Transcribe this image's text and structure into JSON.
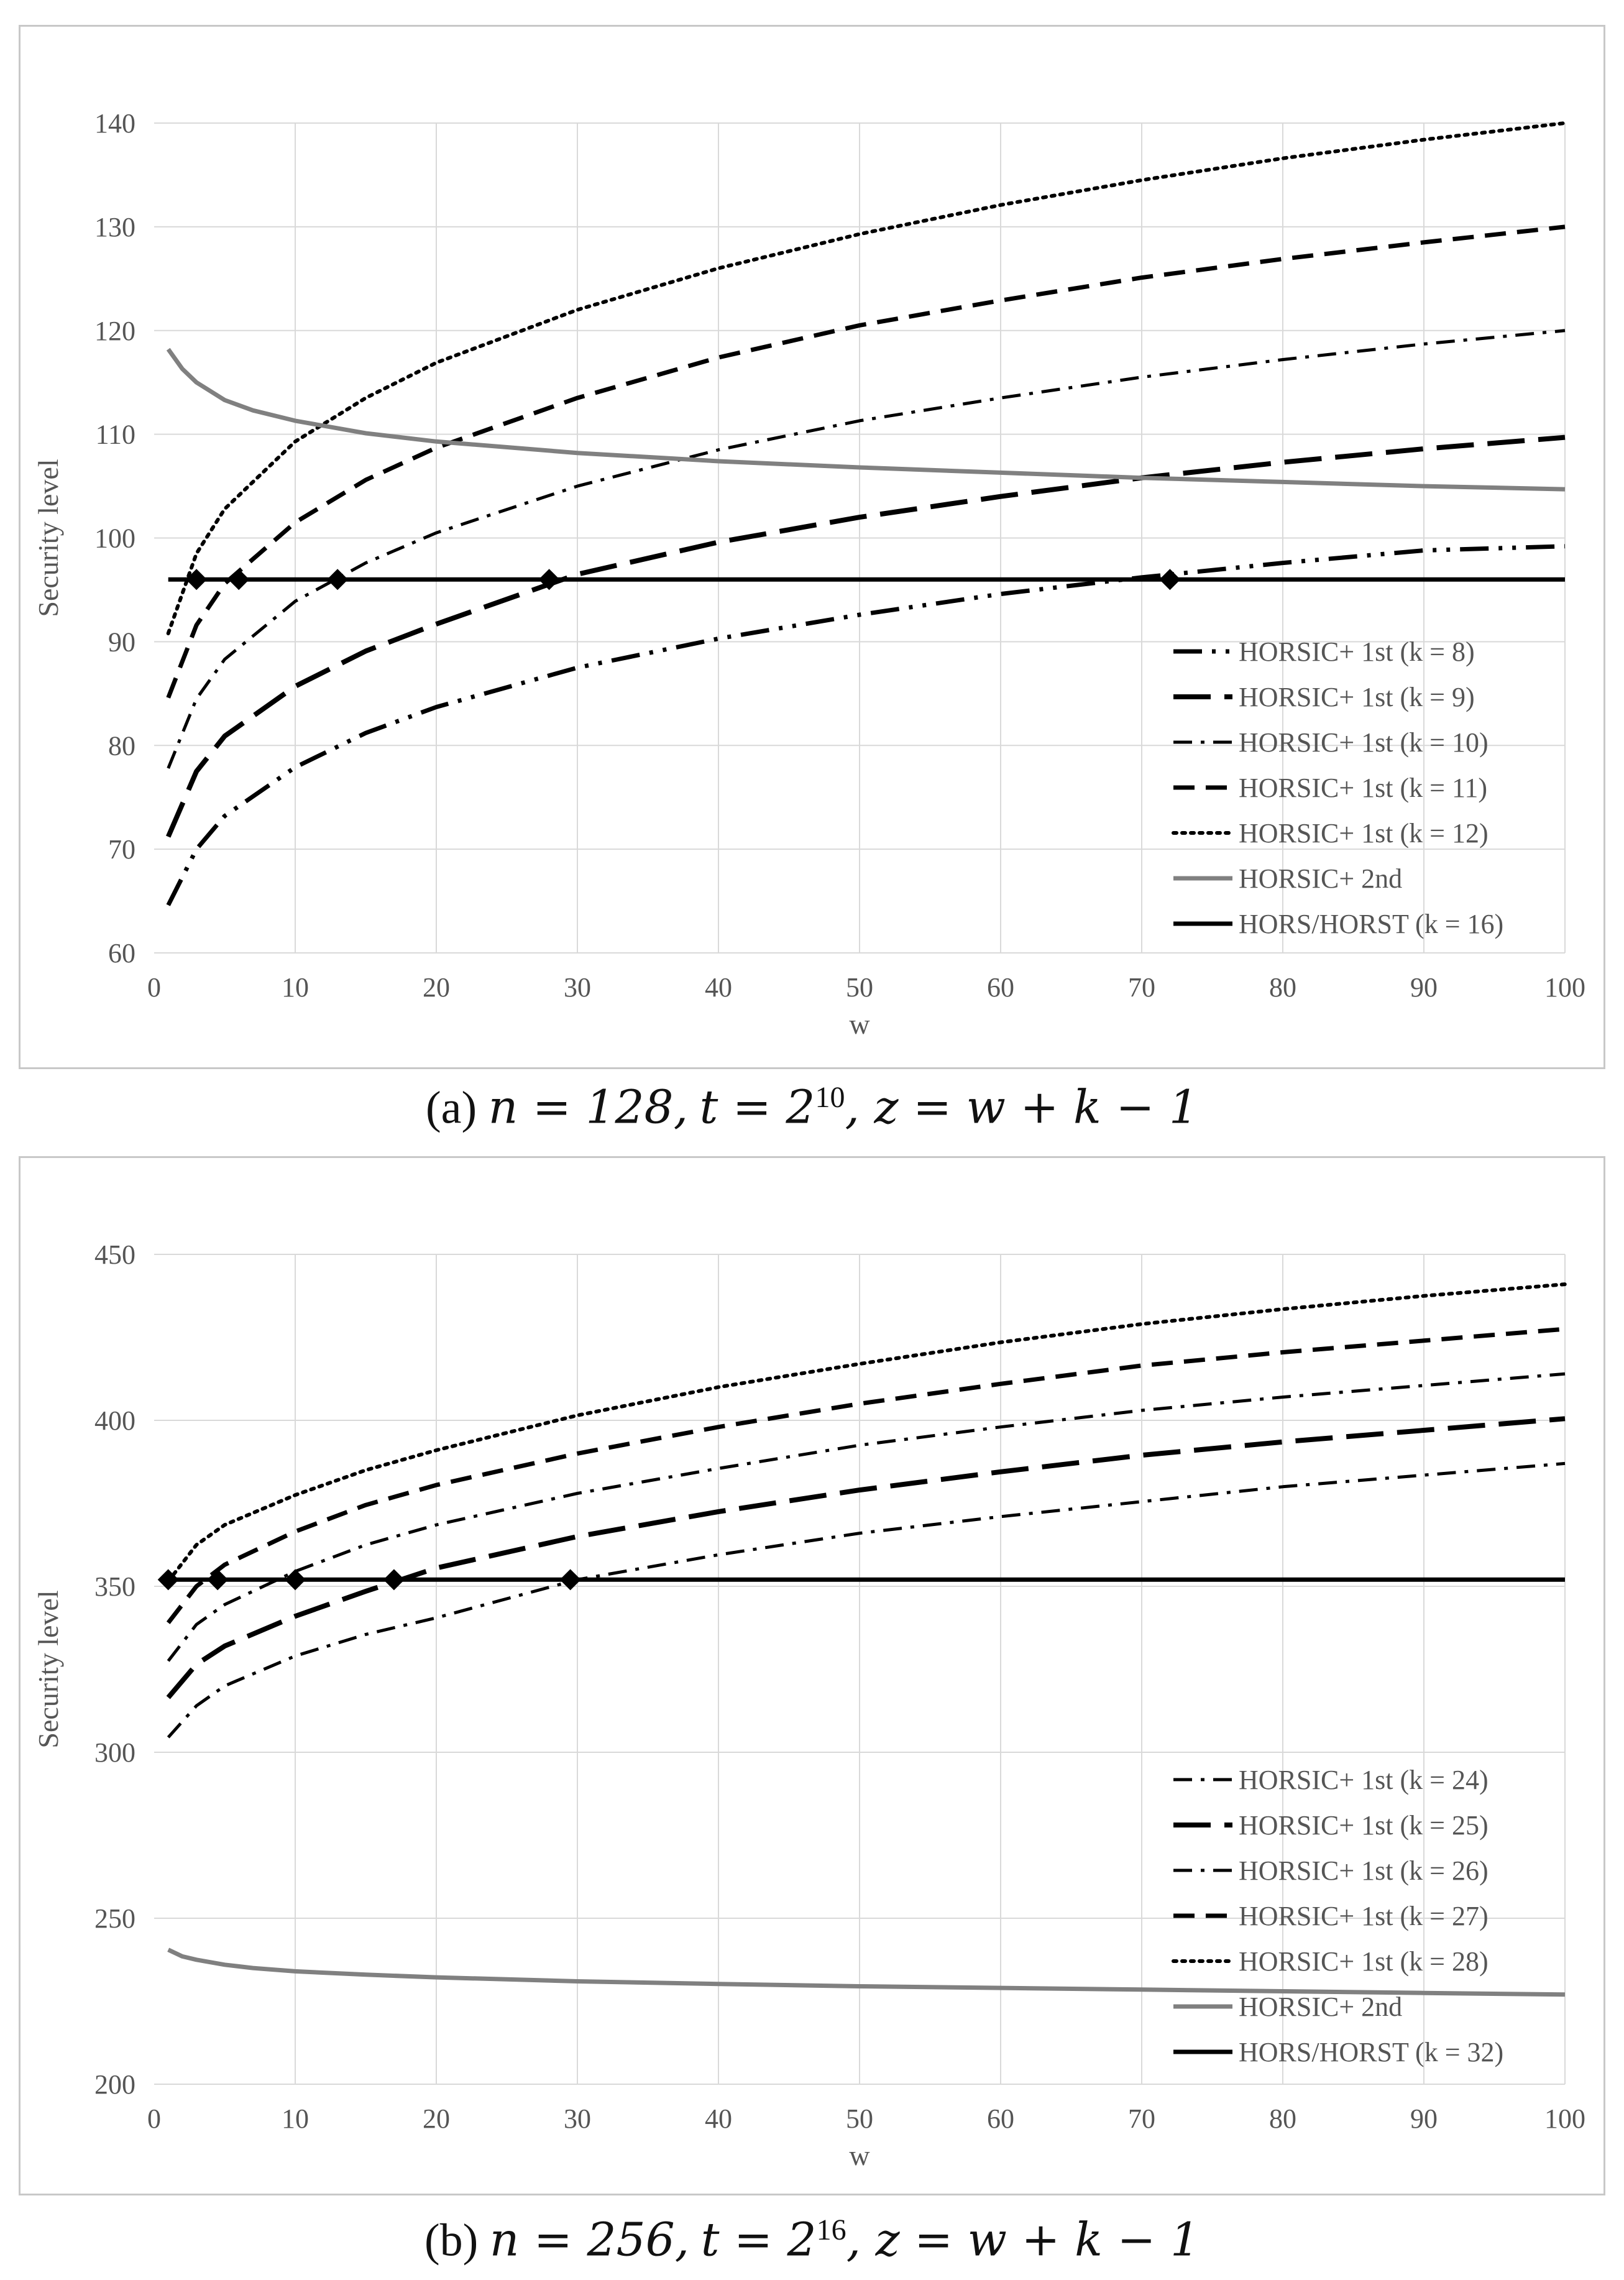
{
  "chart_data": [
    {
      "type": "line",
      "xlabel": "w",
      "ylabel": "Security level",
      "xlim": [
        0,
        100
      ],
      "ylim": [
        60,
        140
      ],
      "x_ticks": [
        0,
        10,
        20,
        30,
        40,
        50,
        60,
        70,
        80,
        90,
        100
      ],
      "y_ticks": [
        60,
        70,
        80,
        90,
        100,
        110,
        120,
        130,
        140
      ],
      "grid": true,
      "legend_position": "bottom-right",
      "caption": "(a) n = 128, t = 2^10, z = w + k − 1",
      "caption_parts": {
        "label": "(a)",
        "n": "n = 128,",
        "t": "t = 2",
        "t_exp": "10",
        "z": ", z = w + k − 1"
      },
      "series": [
        {
          "name": "HORSIC+ 1st (k = 8)",
          "style": "dashdotdot",
          "color": "#000000",
          "x": [
            1,
            3,
            5,
            10,
            15,
            20,
            30,
            40,
            50,
            60,
            70,
            80,
            90,
            100
          ],
          "y": [
            64.6,
            70.0,
            73.2,
            77.9,
            81.2,
            83.7,
            87.5,
            90.3,
            92.6,
            94.6,
            96.2,
            97.6,
            98.8,
            99.2
          ]
        },
        {
          "name": "HORSIC+ 1st (k = 9)",
          "style": "longdash",
          "color": "#000000",
          "x": [
            1,
            3,
            5,
            10,
            15,
            20,
            30,
            40,
            50,
            60,
            70,
            80,
            90,
            100
          ],
          "y": [
            71.2,
            77.5,
            80.9,
            85.7,
            89.1,
            91.7,
            96.5,
            99.6,
            102.0,
            104.0,
            105.8,
            107.3,
            108.6,
            109.7
          ]
        },
        {
          "name": "HORSIC+ 1st (k = 10)",
          "style": "dashdot",
          "color": "#000000",
          "x": [
            1,
            3,
            5,
            10,
            15,
            20,
            30,
            40,
            50,
            60,
            70,
            80,
            90,
            100
          ],
          "y": [
            77.8,
            84.5,
            88.3,
            93.9,
            97.6,
            100.5,
            105.0,
            108.5,
            111.3,
            113.5,
            115.5,
            117.2,
            118.7,
            120.0
          ]
        },
        {
          "name": "HORSIC+ 1st (k = 11)",
          "style": "dash",
          "color": "#000000",
          "x": [
            1,
            3,
            5,
            10,
            15,
            20,
            30,
            40,
            50,
            60,
            70,
            80,
            90,
            100
          ],
          "y": [
            84.6,
            91.6,
            95.6,
            101.5,
            105.6,
            108.7,
            113.5,
            117.4,
            120.5,
            122.9,
            125.1,
            126.9,
            128.5,
            130.0
          ]
        },
        {
          "name": "HORSIC+ 1st (k = 12)",
          "style": "dot",
          "color": "#000000",
          "x": [
            1,
            3,
            5,
            10,
            15,
            20,
            30,
            40,
            50,
            60,
            70,
            80,
            90,
            100
          ],
          "y": [
            90.8,
            98.5,
            102.8,
            109.3,
            113.5,
            116.9,
            122.0,
            126.0,
            129.3,
            132.1,
            134.5,
            136.6,
            138.4,
            140.0
          ]
        },
        {
          "name": "HORSIC+ 2nd",
          "style": "solid",
          "color": "#808080",
          "x": [
            1,
            2,
            3,
            5,
            7,
            10,
            15,
            20,
            30,
            40,
            50,
            60,
            70,
            80,
            90,
            100
          ],
          "y": [
            118.2,
            116.3,
            115.0,
            113.3,
            112.3,
            111.3,
            110.1,
            109.3,
            108.2,
            107.4,
            106.8,
            106.3,
            105.8,
            105.4,
            105.0,
            104.7
          ]
        },
        {
          "name": "HORS/HORST (k = 16)",
          "style": "solid",
          "color": "#000000",
          "x": [
            1,
            100
          ],
          "y": [
            96,
            96
          ]
        }
      ],
      "markers": {
        "shape": "diamond",
        "x": [
          3,
          6,
          13,
          28,
          72
        ],
        "y": [
          96,
          96,
          96,
          96,
          96
        ]
      }
    },
    {
      "type": "line",
      "xlabel": "w",
      "ylabel": "Security level",
      "xlim": [
        0,
        100
      ],
      "ylim": [
        200,
        450
      ],
      "x_ticks": [
        0,
        10,
        20,
        30,
        40,
        50,
        60,
        70,
        80,
        90,
        100
      ],
      "y_ticks": [
        200,
        250,
        300,
        350,
        400,
        450
      ],
      "grid": true,
      "legend_position": "bottom-right",
      "caption": "(b) n = 256, t = 2^16, z = w + k − 1",
      "caption_parts": {
        "label": "(b)",
        "n": "n = 256,",
        "t": "t = 2",
        "t_exp": "16",
        "z": ", z = w + k − 1"
      },
      "series": [
        {
          "name": "HORSIC+ 1st (k = 24)",
          "style": "dashdot",
          "color": "#000000",
          "x": [
            1,
            3,
            5,
            10,
            15,
            20,
            30,
            40,
            50,
            60,
            70,
            80,
            90,
            100
          ],
          "y": [
            304.5,
            314.0,
            320.0,
            329.0,
            335.5,
            340.5,
            352.0,
            359.5,
            366.0,
            371.0,
            375.5,
            380.0,
            383.5,
            387.0
          ]
        },
        {
          "name": "HORSIC+ 1st (k = 25)",
          "style": "longdash",
          "color": "#000000",
          "x": [
            1,
            3,
            5,
            10,
            15,
            20,
            30,
            40,
            50,
            60,
            70,
            80,
            90,
            100
          ],
          "y": [
            316.5,
            326.5,
            332.0,
            341.0,
            348.5,
            355.5,
            365.0,
            372.5,
            379.0,
            384.5,
            389.5,
            393.5,
            397.0,
            400.5
          ]
        },
        {
          "name": "HORSIC+ 1st (k = 26)",
          "style": "dashdot",
          "color": "#000000",
          "x": [
            1,
            3,
            5,
            10,
            15,
            20,
            30,
            40,
            50,
            60,
            70,
            80,
            90,
            100
          ],
          "y": [
            327.5,
            338.5,
            344.5,
            354.5,
            362.5,
            368.5,
            378.0,
            385.5,
            392.5,
            398.0,
            403.0,
            407.0,
            410.5,
            414.0
          ]
        },
        {
          "name": "HORSIC+ 1st (k = 27)",
          "style": "dash",
          "color": "#000000",
          "x": [
            1,
            3,
            5,
            10,
            15,
            20,
            30,
            40,
            50,
            60,
            70,
            80,
            90,
            100
          ],
          "y": [
            339.0,
            350.0,
            356.5,
            366.5,
            374.5,
            380.5,
            390.0,
            398.0,
            405.0,
            411.0,
            416.5,
            420.5,
            424.0,
            427.5
          ]
        },
        {
          "name": "HORSIC+ 1st (k = 28)",
          "style": "dot",
          "color": "#000000",
          "x": [
            1,
            3,
            5,
            10,
            15,
            20,
            30,
            40,
            50,
            60,
            70,
            80,
            90,
            100
          ],
          "y": [
            351.5,
            362.5,
            368.5,
            377.5,
            385.0,
            391.0,
            401.5,
            410.0,
            417.0,
            423.5,
            429.0,
            433.5,
            437.5,
            441.0
          ]
        },
        {
          "name": "HORSIC+ 2nd",
          "style": "solid",
          "color": "#808080",
          "x": [
            1,
            2,
            3,
            5,
            7,
            10,
            15,
            20,
            30,
            40,
            50,
            60,
            70,
            80,
            90,
            100
          ],
          "y": [
            240.5,
            238.5,
            237.5,
            236.0,
            235.0,
            234.0,
            233.0,
            232.2,
            231.0,
            230.2,
            229.5,
            229.0,
            228.5,
            228.0,
            227.5,
            227.0
          ]
        },
        {
          "name": "HORS/HORST (k = 32)",
          "style": "solid",
          "color": "#000000",
          "x": [
            1,
            100
          ],
          "y": [
            352,
            352
          ]
        }
      ],
      "markers": {
        "shape": "diamond",
        "x": [
          1,
          4.5,
          10,
          17,
          29.5
        ],
        "y": [
          352,
          352,
          352,
          352,
          352
        ]
      }
    }
  ]
}
